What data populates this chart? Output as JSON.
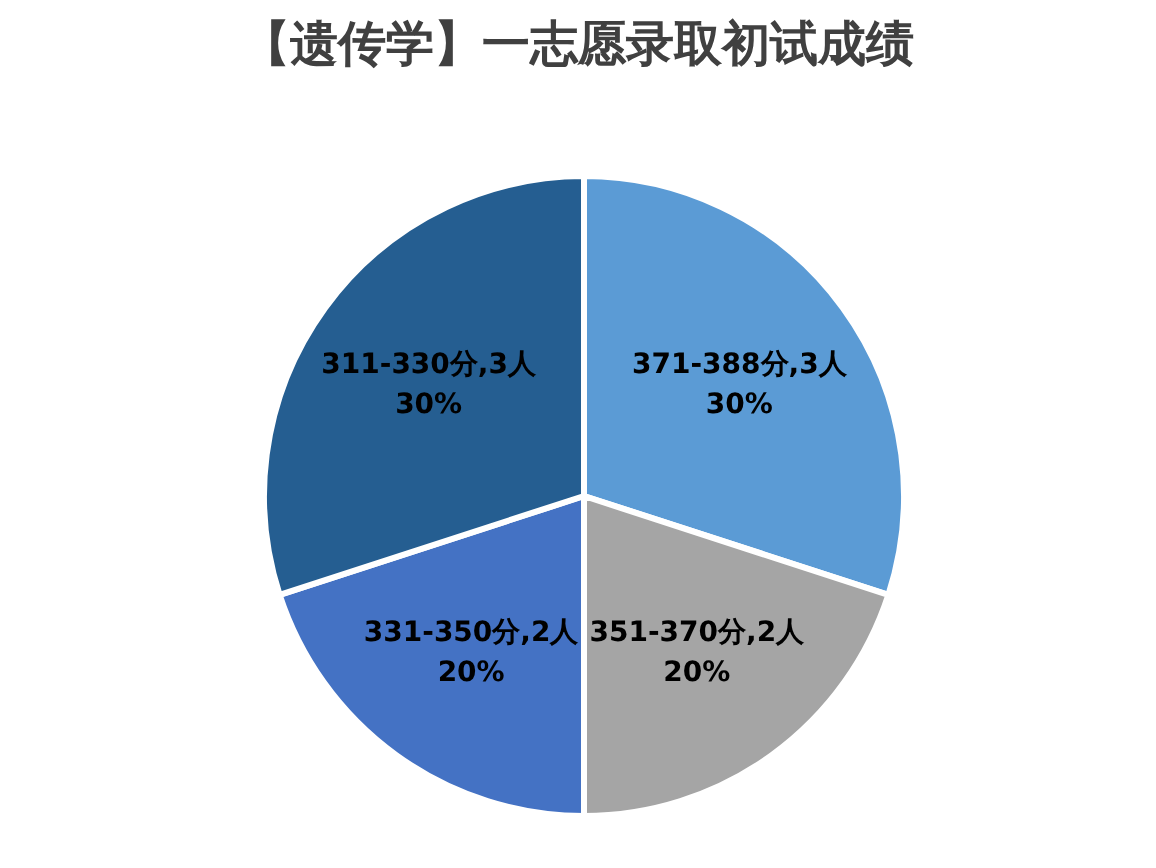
{
  "chart_data": {
    "type": "pie",
    "title": "【遗传学】一志愿录取初试成绩",
    "categories": [
      "371-388分,3人",
      "351-370分,2人",
      "331-350分,2人",
      "311-330分,3人"
    ],
    "values": [
      30,
      20,
      20,
      30
    ],
    "value_labels": [
      "30%",
      "20%",
      "20%",
      "30%"
    ],
    "colors": [
      "#5b9bd5",
      "#a5a5a5",
      "#4472c4",
      "#255e91"
    ]
  }
}
